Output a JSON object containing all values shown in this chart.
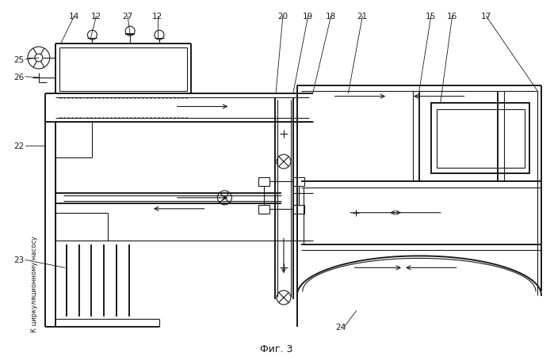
{
  "background_color": "#ffffff",
  "line_color": "#1a1a1a",
  "caption": "Фиг. 3",
  "side_text": "К циркуляционному насосу",
  "fig_width": 6.99,
  "fig_height": 4.56,
  "dpi": 100
}
